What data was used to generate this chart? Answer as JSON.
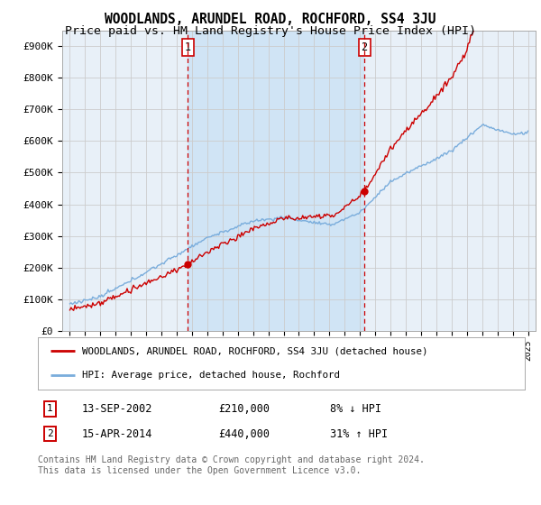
{
  "title": "WOODLANDS, ARUNDEL ROAD, ROCHFORD, SS4 3JU",
  "subtitle": "Price paid vs. HM Land Registry's House Price Index (HPI)",
  "ylim": [
    0,
    950000
  ],
  "yticks": [
    0,
    100000,
    200000,
    300000,
    400000,
    500000,
    600000,
    700000,
    800000,
    900000
  ],
  "ytick_labels": [
    "£0",
    "£100K",
    "£200K",
    "£300K",
    "£400K",
    "£500K",
    "£600K",
    "£700K",
    "£800K",
    "£900K"
  ],
  "hpi_color": "#7aaddc",
  "price_color": "#cc0000",
  "vline_color": "#cc0000",
  "plot_bg": "#e8f0f8",
  "shade_bg": "#d0e4f5",
  "grid_color": "#cccccc",
  "sale1_year": 2002.71,
  "sale1_price": 210000,
  "sale1_label": "1",
  "sale1_date": "13-SEP-2002",
  "sale1_hpi_pct": "8% ↓ HPI",
  "sale2_year": 2014.29,
  "sale2_price": 440000,
  "sale2_label": "2",
  "sale2_date": "15-APR-2014",
  "sale2_hpi_pct": "31% ↑ HPI",
  "legend_line1": "WOODLANDS, ARUNDEL ROAD, ROCHFORD, SS4 3JU (detached house)",
  "legend_line2": "HPI: Average price, detached house, Rochford",
  "footer": "Contains HM Land Registry data © Crown copyright and database right 2024.\nThis data is licensed under the Open Government Licence v3.0.",
  "title_fontsize": 10.5,
  "subtitle_fontsize": 9.5,
  "tick_fontsize": 8
}
